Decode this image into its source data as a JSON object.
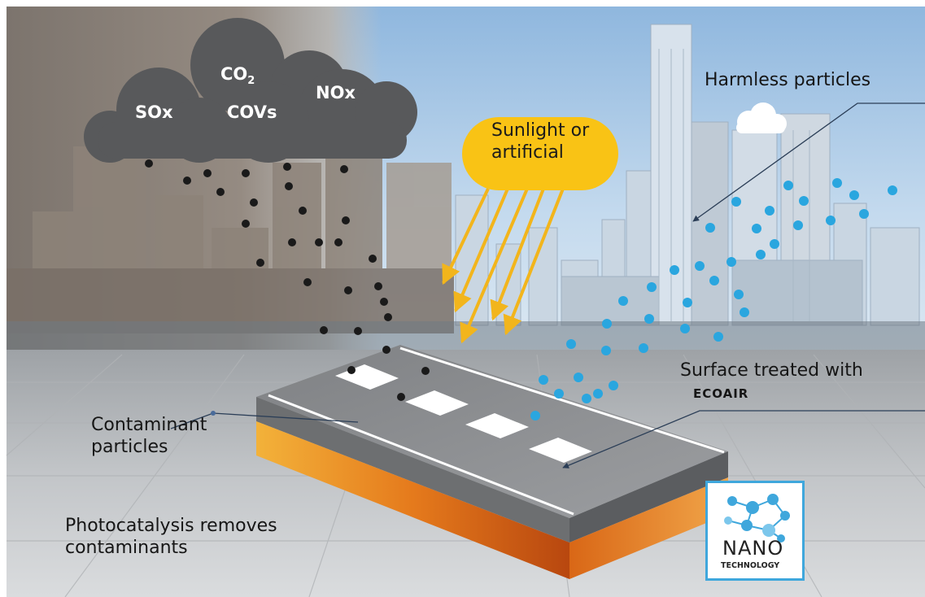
{
  "cloud": {
    "label_sox": "SOx",
    "label_co2_main": "CO",
    "label_co2_sub": "2",
    "label_covs": "COVs",
    "label_nox": "NOx"
  },
  "light": {
    "label": "Sunlight or artificial"
  },
  "harmless": {
    "label": "Harmless particles"
  },
  "surface": {
    "label": "Surface treated with",
    "brand": "ECOAIR"
  },
  "contaminant": {
    "label": "Contaminant particles"
  },
  "process": {
    "label": "Photocatalysis removes contaminants"
  },
  "logo": {
    "line1": "NANO",
    "line2": "TECHNOLOGY"
  },
  "colors": {
    "sky": "#a9c9e6",
    "smog": "#8d8680",
    "cloud": "#58595b",
    "sun_pill": "#f9c315",
    "arrow": "#f2b51c",
    "particle_blue": "#2aa6df",
    "particle_dark": "#1a1a1a",
    "road_top": "#8f9092",
    "road_front": "#e07a1e",
    "logo_border": "#3fa7dc"
  }
}
